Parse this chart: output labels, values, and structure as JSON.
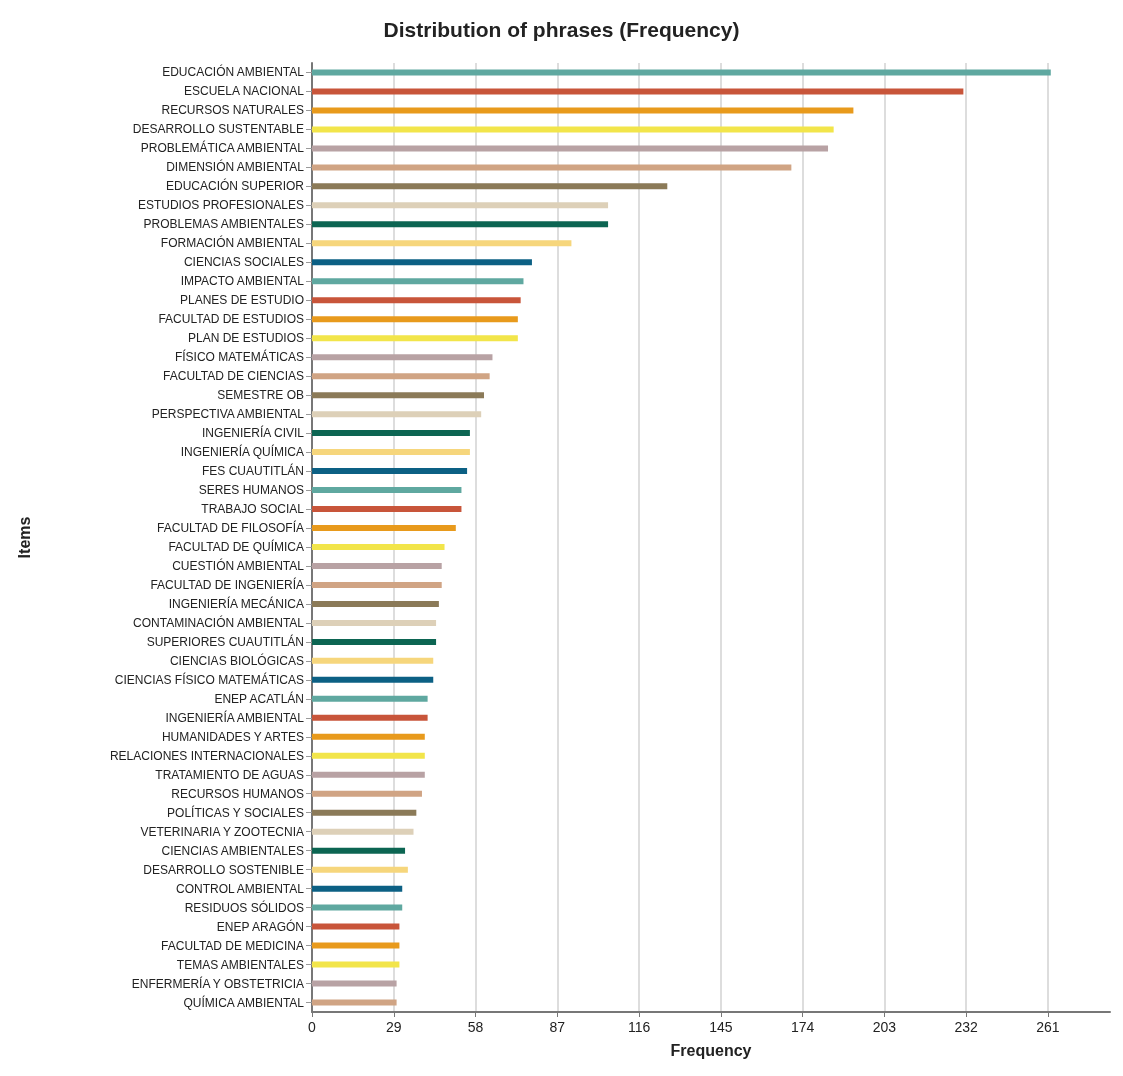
{
  "chart_data": {
    "type": "bar",
    "orientation": "horizontal",
    "title": "Distribution of phrases (Frequency)",
    "xlabel": "Frequency",
    "ylabel": "Items",
    "categories": [
      "EDUCACIÓN AMBIENTAL",
      "ESCUELA NACIONAL",
      "RECURSOS NATURALES",
      "DESARROLLO SUSTENTABLE",
      "PROBLEMÁTICA AMBIENTAL",
      "DIMENSIÓN AMBIENTAL",
      "EDUCACIÓN SUPERIOR",
      "ESTUDIOS PROFESIONALES",
      "PROBLEMAS AMBIENTALES",
      "FORMACIÓN AMBIENTAL",
      "CIENCIAS SOCIALES",
      "IMPACTO AMBIENTAL",
      "PLANES DE ESTUDIO",
      "FACULTAD DE ESTUDIOS",
      "PLAN DE ESTUDIOS",
      "FÍSICO MATEMÁTICAS",
      "FACULTAD DE CIENCIAS",
      "SEMESTRE OB",
      "PERSPECTIVA AMBIENTAL",
      "INGENIERÍA CIVIL",
      "INGENIERÍA QUÍMICA",
      "FES CUAUTITLÁN",
      "SERES HUMANOS",
      "TRABAJO SOCIAL",
      "FACULTAD DE FILOSOFÍA",
      "FACULTAD DE QUÍMICA",
      "CUESTIÓN AMBIENTAL",
      "FACULTAD DE INGENIERÍA",
      "INGENIERÍA MECÁNICA",
      "CONTAMINACIÓN AMBIENTAL",
      "SUPERIORES CUAUTITLÁN",
      "CIENCIAS BIOLÓGICAS",
      "CIENCIAS FÍSICO MATEMÁTICAS",
      "ENEP ACATLÁN",
      "INGENIERÍA AMBIENTAL",
      "HUMANIDADES Y ARTES",
      "RELACIONES INTERNACIONALES",
      "TRATAMIENTO DE AGUAS",
      "RECURSOS HUMANOS",
      "POLÍTICAS Y SOCIALES",
      "VETERINARIA Y ZOOTECNIA",
      "CIENCIAS AMBIENTALES",
      "DESARROLLO SOSTENIBLE",
      "CONTROL AMBIENTAL",
      "RESIDUOS SÓLIDOS",
      "ENEP ARAGÓN",
      "FACULTAD DE MEDICINA",
      "TEMAS AMBIENTALES",
      "ENFERMERÍA Y OBSTETRICIA",
      "QUÍMICA AMBIENTAL"
    ],
    "values": [
      262,
      231,
      192,
      185,
      183,
      170,
      126,
      105,
      105,
      92,
      78,
      75,
      74,
      73,
      73,
      64,
      63,
      61,
      60,
      56,
      56,
      55,
      53,
      53,
      51,
      47,
      46,
      46,
      45,
      44,
      44,
      43,
      43,
      41,
      41,
      40,
      40,
      40,
      39,
      37,
      36,
      33,
      34,
      32,
      32,
      31,
      31,
      31,
      30,
      30
    ],
    "colors": [
      "#5fa8a0",
      "#c8553a",
      "#e89a1c",
      "#f2e54a",
      "#b8a2a4",
      "#d0a484",
      "#8b7a58",
      "#ddd0b8",
      "#0c6552",
      "#f6d67c",
      "#0c6084",
      "#5fa8a0",
      "#c8553a",
      "#e89a1c",
      "#f2e54a",
      "#b8a2a4",
      "#d0a484",
      "#8b7a58",
      "#ddd0b8",
      "#0c6552",
      "#f6d67c",
      "#0c6084",
      "#5fa8a0",
      "#c8553a",
      "#e89a1c",
      "#f2e54a",
      "#b8a2a4",
      "#d0a484",
      "#8b7a58",
      "#ddd0b8",
      "#0c6552",
      "#f6d67c",
      "#0c6084",
      "#5fa8a0",
      "#c8553a",
      "#e89a1c",
      "#f2e54a",
      "#b8a2a4",
      "#d0a484",
      "#8b7a58",
      "#ddd0b8",
      "#0c6552",
      "#f6d67c",
      "#0c6084",
      "#5fa8a0",
      "#c8553a",
      "#e89a1c",
      "#f2e54a",
      "#b8a2a4",
      "#d0a484"
    ],
    "xlim": [
      0,
      283
    ],
    "xticks": [
      0,
      29,
      58,
      87,
      116,
      145,
      174,
      203,
      232,
      261
    ],
    "grid": "x"
  }
}
